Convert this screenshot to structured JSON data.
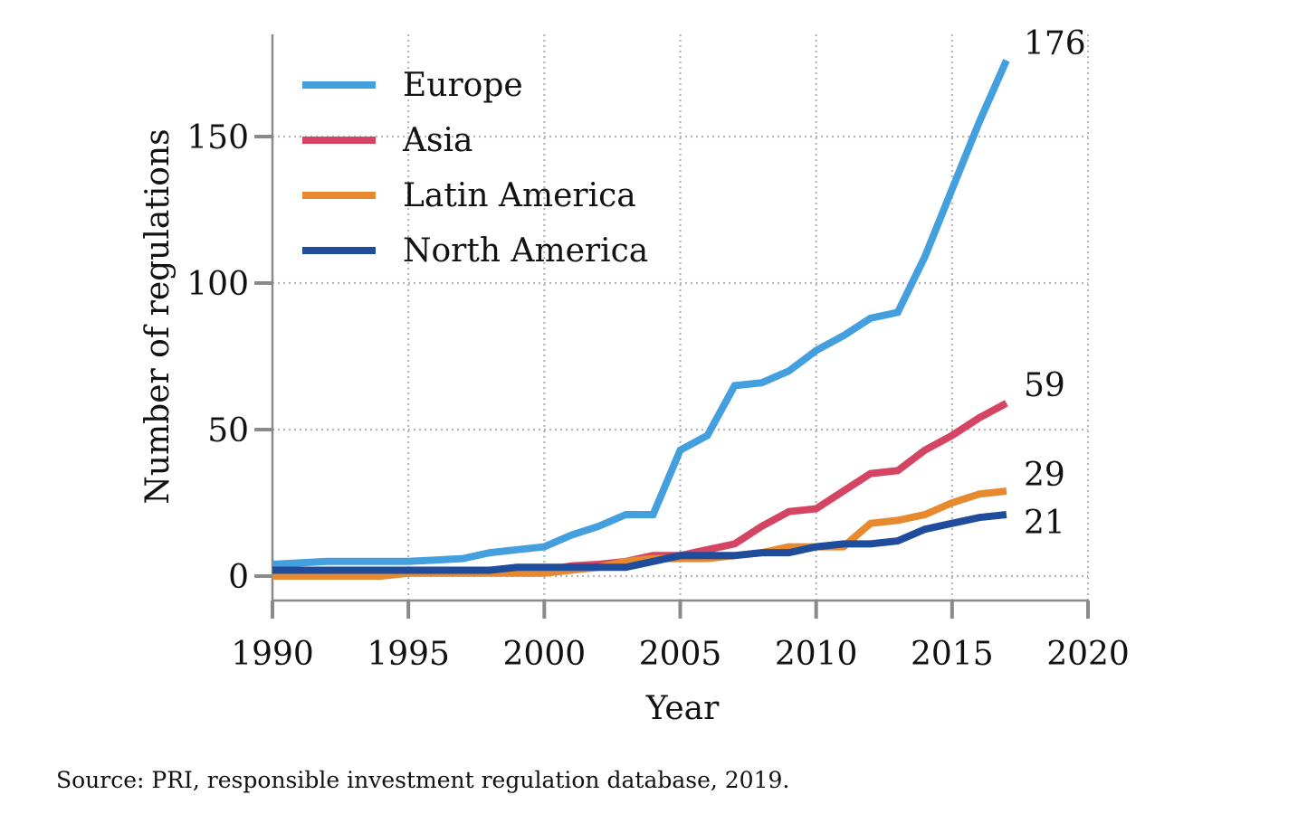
{
  "chart_data": {
    "type": "line",
    "title": "",
    "xlabel": "Year",
    "ylabel": "Number of regulations",
    "xlim": [
      1990,
      2020
    ],
    "ylim": [
      -9,
      186
    ],
    "xticks": [
      1990,
      1995,
      2000,
      2005,
      2010,
      2015,
      2020
    ],
    "yticks": [
      0,
      50,
      100,
      150
    ],
    "grid": true,
    "legend_position": "top-left",
    "x": [
      1990,
      1991,
      1992,
      1993,
      1994,
      1995,
      1996,
      1997,
      1998,
      1999,
      2000,
      2001,
      2002,
      2003,
      2004,
      2005,
      2006,
      2007,
      2008,
      2009,
      2010,
      2011,
      2012,
      2013,
      2014,
      2015,
      2016,
      2017
    ],
    "series": [
      {
        "name": "Europe",
        "color": "#449fdf",
        "end_label": "176",
        "values": [
          4,
          4.5,
          5,
          5,
          5,
          5,
          5.5,
          6,
          8,
          9,
          10,
          14,
          17,
          21,
          21,
          43,
          48,
          65,
          66,
          70,
          77,
          82,
          88,
          90,
          109,
          132,
          155,
          176
        ]
      },
      {
        "name": "Asia",
        "color": "#d64463",
        "end_label": "59",
        "values": [
          2,
          2,
          2,
          2,
          2,
          2,
          2,
          2,
          2,
          2,
          2,
          3.5,
          4,
          5,
          7,
          7,
          9,
          11,
          17,
          22,
          23,
          29,
          35,
          36,
          43,
          48,
          54,
          59
        ]
      },
      {
        "name": "Latin America",
        "color": "#e7892f",
        "end_label": "29",
        "values": [
          0,
          0,
          0,
          0,
          0,
          1,
          1,
          1,
          1,
          1,
          1,
          2,
          3,
          5,
          6,
          6,
          6,
          7,
          8,
          10,
          10,
          10,
          18,
          19,
          21,
          25,
          28,
          29
        ]
      },
      {
        "name": "North America",
        "color": "#1f4d9c",
        "end_label": "21",
        "values": [
          2,
          2,
          2,
          2,
          2,
          2,
          2,
          2,
          2,
          3,
          3,
          3,
          3,
          3,
          5,
          7,
          7,
          7,
          8,
          8,
          10,
          11,
          11,
          12,
          16,
          18,
          20,
          21
        ]
      }
    ]
  },
  "source_note": "Source: PRI, responsible investment regulation database, 2019."
}
